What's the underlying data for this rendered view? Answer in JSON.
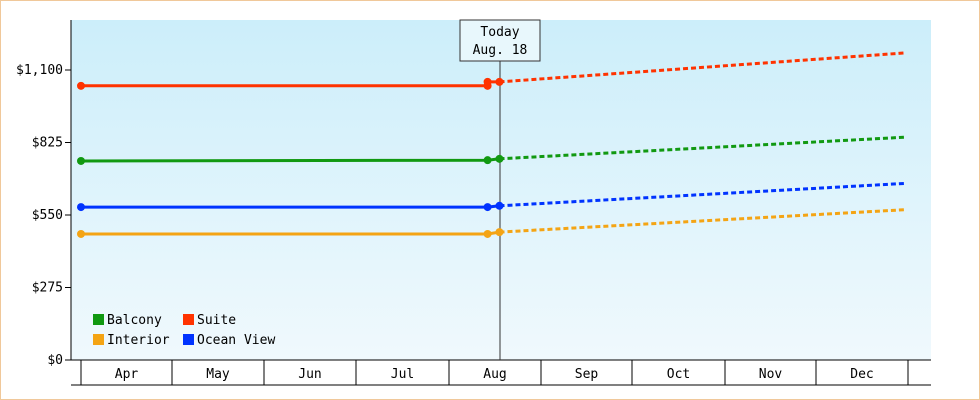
{
  "chart_data": {
    "type": "line",
    "y_ticks": [
      {
        "value": 0,
        "label": "$0"
      },
      {
        "value": 275,
        "label": "$275"
      },
      {
        "value": 550,
        "label": "$550"
      },
      {
        "value": 825,
        "label": "$825"
      },
      {
        "value": 1100,
        "label": "$1,100"
      }
    ],
    "ylim": [
      0,
      1290
    ],
    "months": [
      "Apr",
      "May",
      "Jun",
      "Jul",
      "Aug",
      "Sep",
      "Oct",
      "Nov",
      "Dec"
    ],
    "today": {
      "line1": "Today",
      "line2": "Aug. 18"
    },
    "grid": false,
    "legend_position": "bottom-left",
    "series": [
      {
        "name": "Suite",
        "color": "#ff3300",
        "history": [
          {
            "x": "Apr 1",
            "y": 1040
          },
          {
            "x": "Aug 14",
            "y": 1040
          },
          {
            "x": "Aug 14",
            "y": 1055
          },
          {
            "x": "Aug 18",
            "y": 1055
          }
        ],
        "forecast": [
          {
            "x": "Aug 18",
            "y": 1055
          },
          {
            "x": "Dec 31",
            "y": 1165
          }
        ]
      },
      {
        "name": "Balcony",
        "color": "#119911",
        "history": [
          {
            "x": "Apr 1",
            "y": 755
          },
          {
            "x": "Aug 14",
            "y": 758
          },
          {
            "x": "Aug 18",
            "y": 763
          }
        ],
        "forecast": [
          {
            "x": "Aug 18",
            "y": 763
          },
          {
            "x": "Dec 31",
            "y": 845
          }
        ]
      },
      {
        "name": "Ocean View",
        "color": "#0033ff",
        "history": [
          {
            "x": "Apr 1",
            "y": 580
          },
          {
            "x": "Aug 14",
            "y": 580
          },
          {
            "x": "Aug 18",
            "y": 585
          }
        ],
        "forecast": [
          {
            "x": "Aug 18",
            "y": 585
          },
          {
            "x": "Dec 31",
            "y": 670
          }
        ]
      },
      {
        "name": "Interior",
        "color": "#f4a414",
        "history": [
          {
            "x": "Apr 1",
            "y": 478
          },
          {
            "x": "Aug 14",
            "y": 478
          },
          {
            "x": "Aug 18",
            "y": 485
          }
        ],
        "forecast": [
          {
            "x": "Aug 18",
            "y": 485
          },
          {
            "x": "Dec 31",
            "y": 570
          }
        ]
      }
    ],
    "legend": [
      {
        "name": "Balcony",
        "color": "#119911"
      },
      {
        "name": "Suite",
        "color": "#ff3300"
      },
      {
        "name": "Interior",
        "color": "#f4a414"
      },
      {
        "name": "Ocean View",
        "color": "#0033ff"
      }
    ]
  }
}
